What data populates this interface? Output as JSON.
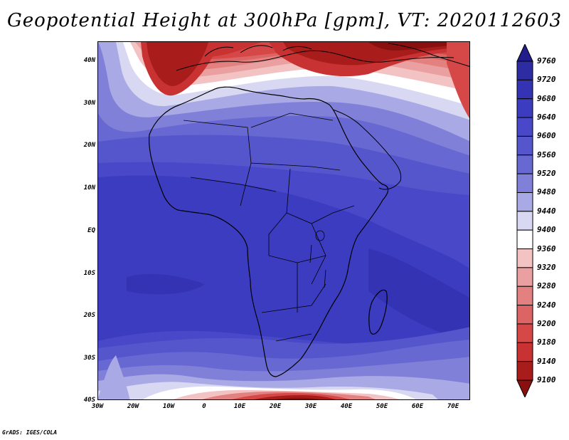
{
  "title": "Geopotential Height at 300hPa [gpm], VT: 2020112603",
  "lat_labels": [
    "40N",
    "30N",
    "20N",
    "10N",
    "EQ",
    "10S",
    "20S",
    "30S",
    "40S"
  ],
  "lon_labels": [
    "30W",
    "20W",
    "10W",
    "0",
    "10E",
    "20E",
    "30E",
    "40E",
    "50E",
    "60E",
    "70E"
  ],
  "colorbar": {
    "levels": [
      "9760",
      "9720",
      "9680",
      "9640",
      "9600",
      "9560",
      "9520",
      "9480",
      "9440",
      "9400",
      "9360",
      "9320",
      "9280",
      "9240",
      "9200",
      "9180",
      "9140",
      "9100"
    ],
    "colors": [
      "#231c8c",
      "#2d2ca3",
      "#3333b3",
      "#3c3cc0",
      "#4848c8",
      "#5656cc",
      "#6868d2",
      "#8080d9",
      "#a9a9e6",
      "#d8d8f3",
      "#ffffff",
      "#f3c3c3",
      "#eaa0a0",
      "#e38080",
      "#dd6464",
      "#d64848",
      "#c93232",
      "#a81c1c",
      "#8a1010"
    ]
  },
  "footer": "GrADS: IGES/COLA"
}
